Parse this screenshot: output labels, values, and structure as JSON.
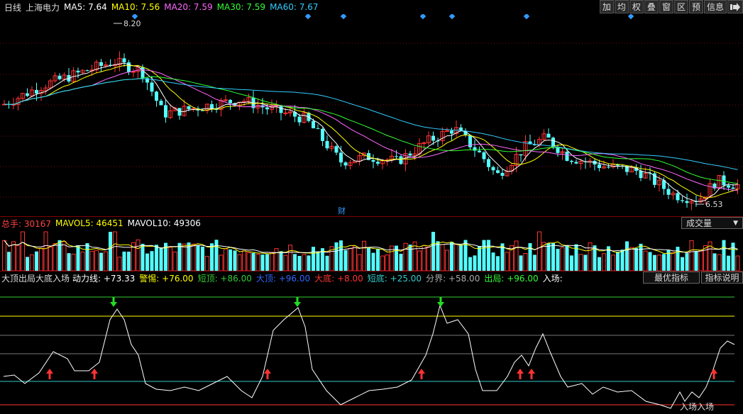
{
  "header": {
    "period": "日线",
    "stock_name": "上海电力",
    "ma": [
      {
        "label": "MA5: 7.64",
        "color": "#ffffff"
      },
      {
        "label": "MA10: 7.56",
        "color": "#ffff00"
      },
      {
        "label": "MA20: 7.59",
        "color": "#ff66ff"
      },
      {
        "label": "MA30: 7.59",
        "color": "#33ff33"
      },
      {
        "label": "MA60: 7.67",
        "color": "#33ccff"
      }
    ]
  },
  "toolbar": [
    "加",
    "均",
    "权",
    "叠",
    "窗",
    "区",
    "预",
    "信息",
    "exit-icon"
  ],
  "price_chart": {
    "high_label": "8.20",
    "low_label": "6.53",
    "finance_marker": "财"
  },
  "volume": {
    "total_label": "总手: 30167",
    "mavol5_label": "MAVOL5: 46451",
    "mavol10_label": "MAVOL10: 49306",
    "selector": "成交量"
  },
  "indicator": {
    "name": "大顶出局大底入场",
    "items": [
      {
        "label": "动力线: +73.33",
        "color": "#ffffff"
      },
      {
        "label": "警惕: +76.00",
        "color": "#ffff00"
      },
      {
        "label": "短顶: +86.00",
        "color": "#33cc33"
      },
      {
        "label": "大顶: +96.00",
        "color": "#3366ff"
      },
      {
        "label": "大底: +8.00",
        "color": "#ff3333"
      },
      {
        "label": "短底: +25.00",
        "color": "#33cccc"
      },
      {
        "label": "分界: +58.00",
        "color": "#aaaaaa"
      },
      {
        "label": "出局: +96.00",
        "color": "#33ff33"
      },
      {
        "label": "入场:",
        "color": "#ffffff"
      }
    ],
    "button_best": "最优指标",
    "button_explain": "指标说明",
    "entry_text": "入场入场"
  }
}
